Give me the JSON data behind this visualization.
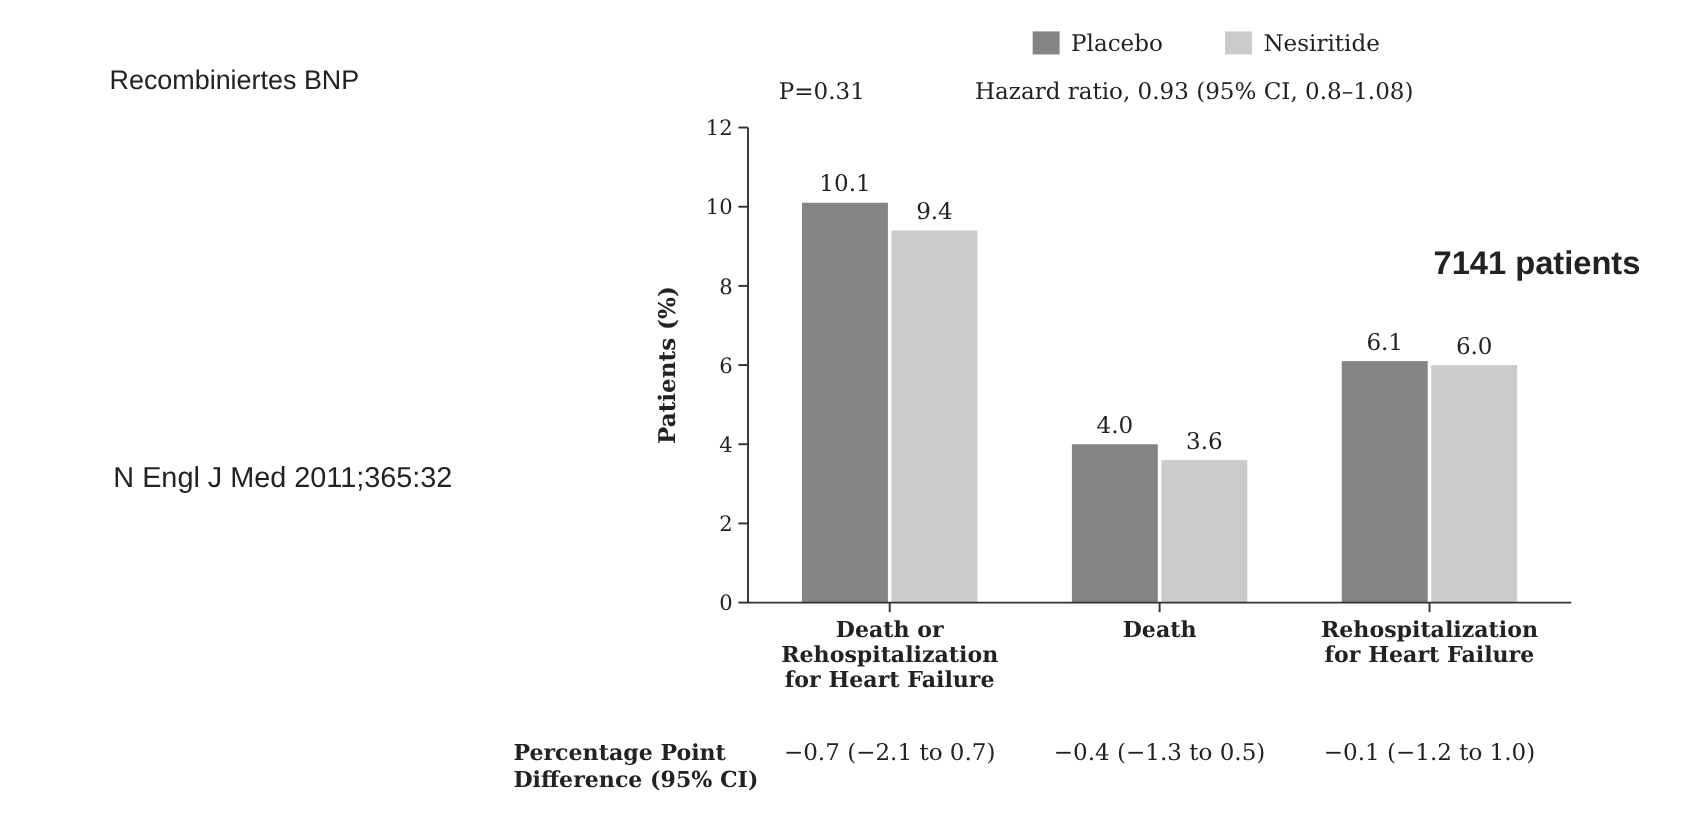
{
  "chart_data": {
    "type": "bar",
    "categories": [
      "Death or\nRehospitalization\nfor Heart Failure",
      "Death",
      "Rehospitalization\nfor Heart Failure"
    ],
    "series": [
      {
        "name": "Placebo",
        "color": "#858585",
        "values": [
          10.1,
          4.0,
          6.1
        ]
      },
      {
        "name": "Nesiritide",
        "color": "#cbcbcb",
        "values": [
          9.4,
          3.6,
          6.0
        ]
      }
    ],
    "value_labels": [
      [
        "10.1",
        "4.0",
        "6.1"
      ],
      [
        "9.4",
        "3.6",
        "6.0"
      ]
    ],
    "ylabel": "Patients (%)",
    "ylim": [
      0,
      12
    ],
    "yticks": [
      0,
      2,
      4,
      6,
      8,
      10,
      12
    ],
    "grid": false,
    "legend": "top",
    "annotations": [
      "Recombiniertes BNP",
      "7141 patients",
      "N Engl J Med 2011;365:32",
      "P=0.31",
      "Hazard ratio, 0.93 (95% CI, 0.8–1.08)",
      "Percentage Point\nDifference (95% CI)",
      "−0.7 (−2.1 to 0.7)",
      "−0.4 (−1.3 to 0.5)",
      "−0.1 (−1.2 to 1.0)"
    ]
  }
}
